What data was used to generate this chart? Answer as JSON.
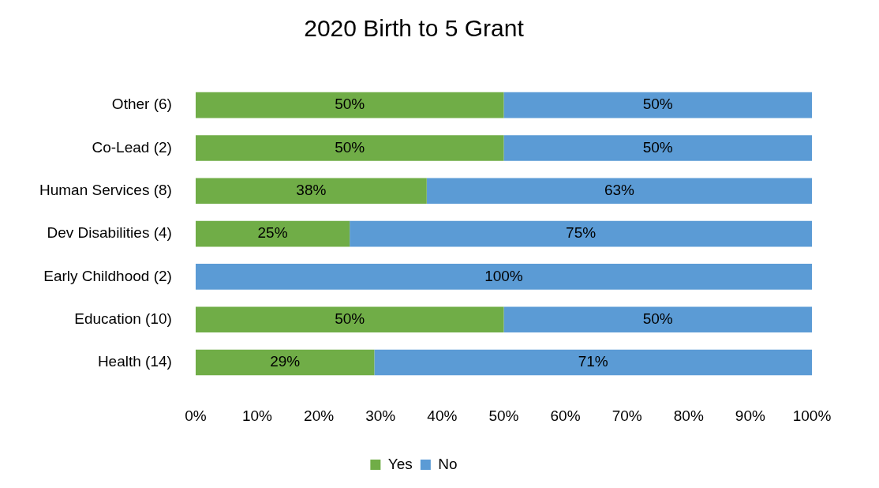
{
  "chart_data": {
    "type": "bar",
    "orientation": "horizontal",
    "stacked": true,
    "title": "2020 Birth to 5 Grant",
    "categories": [
      "Other (6)",
      "Co-Lead (2)",
      "Human Services (8)",
      "Dev Disabilities (4)",
      "Early Childhood (2)",
      "Education (10)",
      "Health (14)"
    ],
    "series": [
      {
        "name": "Yes",
        "color": "#70ad47",
        "values": [
          50,
          50,
          37.5,
          25,
          0,
          50,
          29
        ],
        "value_labels": [
          "50%",
          "50%",
          "38%",
          "25%",
          null,
          "50%",
          "29%"
        ]
      },
      {
        "name": "No",
        "color": "#5b9bd5",
        "values": [
          50,
          50,
          62.5,
          75,
          100,
          50,
          71
        ],
        "value_labels": [
          "50%",
          "50%",
          "63%",
          "75%",
          "100%",
          "50%",
          "71%"
        ]
      }
    ],
    "xlim": [
      0,
      100
    ],
    "xticks": [
      {
        "value": 0,
        "label": "0%"
      },
      {
        "value": 10,
        "label": "10%"
      },
      {
        "value": 20,
        "label": "20%"
      },
      {
        "value": 30,
        "label": "30%"
      },
      {
        "value": 40,
        "label": "40%"
      },
      {
        "value": 50,
        "label": "50%"
      },
      {
        "value": 60,
        "label": "60%"
      },
      {
        "value": 70,
        "label": "70%"
      },
      {
        "value": 80,
        "label": "80%"
      },
      {
        "value": 90,
        "label": "90%"
      },
      {
        "value": 100,
        "label": "100%"
      }
    ],
    "grid": false,
    "legend": "bottom"
  }
}
